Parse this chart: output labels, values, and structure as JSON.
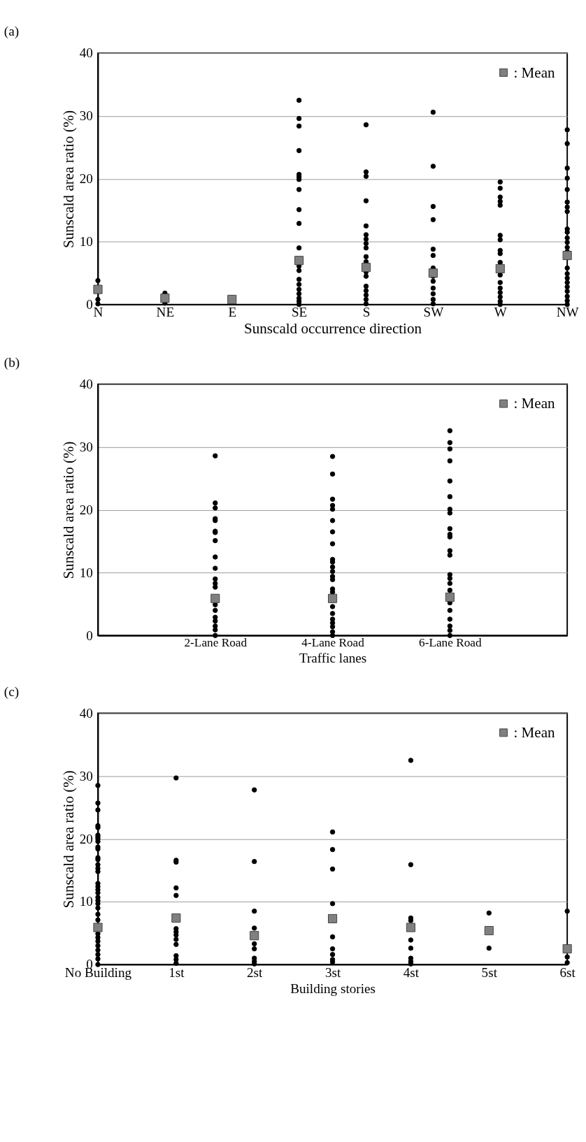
{
  "chart_data": [
    {
      "type": "scatter",
      "title": "(a)",
      "xlabel": "Sunscald occurrence direction",
      "ylabel": "Sunscald area ratio (%)",
      "categories": [
        "N",
        "NE",
        "E",
        "SE",
        "S",
        "SW",
        "W",
        "NW"
      ],
      "ylim": [
        0,
        40
      ],
      "yticks": [
        0,
        10,
        20,
        30,
        40
      ],
      "grid": "y",
      "legend": "top right",
      "series": [
        {
          "color": "#000000",
          "marker": "circle",
          "x": [
            "N",
            "N",
            "N",
            "NE",
            "NE",
            "E",
            "SE",
            "SE",
            "SE",
            "SE",
            "SE",
            "SE",
            "SE",
            "SE",
            "SE",
            "SE",
            "SE",
            "SE",
            "SE",
            "SE",
            "SE",
            "SE",
            "SE",
            "SE",
            "SE",
            "SE",
            "S",
            "S",
            "S",
            "S",
            "S",
            "S",
            "S",
            "S",
            "S",
            "S",
            "S",
            "S",
            "S",
            "S",
            "S",
            "S",
            "S",
            "S",
            "SW",
            "SW",
            "SW",
            "SW",
            "SW",
            "SW",
            "SW",
            "SW",
            "SW",
            "SW",
            "SW",
            "SW",
            "SW",
            "W",
            "W",
            "W",
            "W",
            "W",
            "W",
            "W",
            "W",
            "W",
            "W",
            "W",
            "W",
            "W",
            "W",
            "W",
            "W",
            "W",
            "NW",
            "NW",
            "NW",
            "NW",
            "NW",
            "NW",
            "NW",
            "NW",
            "NW",
            "NW",
            "NW",
            "NW",
            "NW",
            "NW",
            "NW",
            "NW",
            "NW",
            "NW",
            "NW",
            "NW",
            "NW",
            "NW",
            "NW"
          ],
          "values": [
            3.8,
            0.8,
            0.1,
            1.8,
            0.2,
            1.1,
            32.5,
            29.6,
            28.4,
            24.5,
            20.7,
            20.3,
            19.9,
            18.3,
            15.1,
            12.9,
            9.0,
            6.1,
            5.4,
            4.0,
            3.2,
            2.4,
            1.7,
            1.0,
            0.5,
            0.0,
            28.6,
            21.1,
            20.4,
            16.5,
            12.5,
            11.1,
            10.4,
            9.7,
            9.0,
            7.6,
            6.8,
            5.2,
            4.5,
            2.9,
            2.2,
            1.5,
            0.8,
            0.1,
            30.6,
            22.0,
            15.6,
            13.5,
            8.8,
            7.8,
            5.8,
            4.5,
            3.7,
            2.6,
            1.7,
            0.8,
            0.1,
            19.5,
            18.5,
            17.1,
            16.4,
            15.8,
            11.0,
            10.3,
            8.6,
            8.1,
            6.7,
            4.7,
            3.5,
            2.6,
            1.9,
            1.2,
            0.5,
            0.0,
            27.8,
            25.6,
            21.7,
            20.1,
            18.3,
            16.3,
            15.5,
            14.8,
            12.0,
            11.5,
            10.6,
            9.9,
            9.1,
            8.4,
            5.8,
            4.9,
            4.2,
            3.5,
            2.8,
            2.1,
            1.3,
            0.6,
            0.0
          ]
        },
        {
          "name": ": Mean",
          "color": "#808080",
          "marker": "square",
          "x": [
            "N",
            "NE",
            "E",
            "SE",
            "S",
            "SW",
            "W",
            "NW"
          ],
          "values": [
            2.4,
            1.0,
            0.8,
            7.0,
            5.9,
            5.0,
            5.7,
            7.8
          ]
        }
      ]
    },
    {
      "type": "scatter",
      "title": "(b)",
      "xlabel": "Traffic lanes",
      "ylabel": "Sunscald area ratio (%)",
      "categories": [
        "2-Lane Road",
        "4-Lane Road",
        "6-Lane Road"
      ],
      "ylim": [
        0,
        40
      ],
      "yticks": [
        0,
        10,
        20,
        30,
        40
      ],
      "grid": "y",
      "legend": "top right",
      "series": [
        {
          "color": "#000000",
          "marker": "circle",
          "x": [
            "2-Lane Road",
            "2-Lane Road",
            "2-Lane Road",
            "2-Lane Road",
            "2-Lane Road",
            "2-Lane Road",
            "2-Lane Road",
            "2-Lane Road",
            "2-Lane Road",
            "2-Lane Road",
            "2-Lane Road",
            "2-Lane Road",
            "2-Lane Road",
            "2-Lane Road",
            "2-Lane Road",
            "2-Lane Road",
            "2-Lane Road",
            "2-Lane Road",
            "2-Lane Road",
            "2-Lane Road",
            "4-Lane Road",
            "4-Lane Road",
            "4-Lane Road",
            "4-Lane Road",
            "4-Lane Road",
            "4-Lane Road",
            "4-Lane Road",
            "4-Lane Road",
            "4-Lane Road",
            "4-Lane Road",
            "4-Lane Road",
            "4-Lane Road",
            "4-Lane Road",
            "4-Lane Road",
            "4-Lane Road",
            "4-Lane Road",
            "4-Lane Road",
            "4-Lane Road",
            "4-Lane Road",
            "4-Lane Road",
            "4-Lane Road",
            "4-Lane Road",
            "4-Lane Road",
            "6-Lane Road",
            "6-Lane Road",
            "6-Lane Road",
            "6-Lane Road",
            "6-Lane Road",
            "6-Lane Road",
            "6-Lane Road",
            "6-Lane Road",
            "6-Lane Road",
            "6-Lane Road",
            "6-Lane Road",
            "6-Lane Road",
            "6-Lane Road",
            "6-Lane Road",
            "6-Lane Road",
            "6-Lane Road",
            "6-Lane Road",
            "6-Lane Road",
            "6-Lane Road",
            "6-Lane Road",
            "6-Lane Road",
            "6-Lane Road",
            "6-Lane Road"
          ],
          "values": [
            28.6,
            21.1,
            20.3,
            18.6,
            18.3,
            16.6,
            16.4,
            15.1,
            12.5,
            10.7,
            9.0,
            8.3,
            7.7,
            4.9,
            4.0,
            2.9,
            2.3,
            1.5,
            0.9,
            0.0,
            28.5,
            25.7,
            21.7,
            20.7,
            20.1,
            18.3,
            16.5,
            14.6,
            12.1,
            11.7,
            10.9,
            10.2,
            9.4,
            8.9,
            7.4,
            6.9,
            4.6,
            3.5,
            2.6,
            2.0,
            1.4,
            0.6,
            0.0,
            32.6,
            30.7,
            29.7,
            27.8,
            24.6,
            22.1,
            20.1,
            19.5,
            17.0,
            16.1,
            15.7,
            13.5,
            12.8,
            9.7,
            9.1,
            8.3,
            7.2,
            5.2,
            4.0,
            2.6,
            1.5,
            0.8,
            0.0
          ]
        },
        {
          "name": ": Mean",
          "color": "#808080",
          "marker": "square",
          "x": [
            "2-Lane Road",
            "4-Lane Road",
            "6-Lane Road"
          ],
          "values": [
            5.9,
            5.9,
            6.1
          ]
        }
      ]
    },
    {
      "type": "scatter",
      "title": "(c)",
      "xlabel": "Building stories",
      "ylabel": "Sunscald area ratio (%)",
      "categories": [
        "No Building",
        "1st",
        "2st",
        "3st",
        "4st",
        "5st",
        "6st"
      ],
      "ylim": [
        0,
        40
      ],
      "yticks": [
        0,
        10,
        20,
        30,
        40
      ],
      "grid": "y",
      "legend": "top right",
      "series": [
        {
          "color": "#000000",
          "marker": "circle",
          "x": [
            "No Building",
            "No Building",
            "No Building",
            "No Building",
            "No Building",
            "No Building",
            "No Building",
            "No Building",
            "No Building",
            "No Building",
            "No Building",
            "No Building",
            "No Building",
            "No Building",
            "No Building",
            "No Building",
            "No Building",
            "No Building",
            "No Building",
            "No Building",
            "No Building",
            "No Building",
            "No Building",
            "No Building",
            "No Building",
            "No Building",
            "No Building",
            "No Building",
            "No Building",
            "No Building",
            "No Building",
            "No Building",
            "No Building",
            "No Building",
            "1st",
            "1st",
            "1st",
            "1st",
            "1st",
            "1st",
            "1st",
            "1st",
            "1st",
            "1st",
            "1st",
            "1st",
            "1st",
            "2st",
            "2st",
            "2st",
            "2st",
            "2st",
            "2st",
            "2st",
            "2st",
            "2st",
            "3st",
            "3st",
            "3st",
            "3st",
            "3st",
            "3st",
            "3st",
            "3st",
            "3st",
            "4st",
            "4st",
            "4st",
            "4st",
            "4st",
            "4st",
            "4st",
            "4st",
            "4st",
            "5st",
            "5st",
            "6st",
            "6st",
            "6st"
          ],
          "values": [
            28.5,
            25.7,
            24.6,
            22.1,
            21.8,
            20.6,
            20.3,
            20.0,
            19.6,
            18.7,
            18.4,
            17.0,
            16.7,
            15.9,
            15.3,
            14.8,
            12.9,
            12.4,
            11.9,
            11.4,
            10.7,
            10.2,
            9.7,
            9.0,
            8.0,
            7.1,
            4.9,
            4.3,
            3.7,
            3.0,
            2.3,
            1.6,
            0.9,
            0.0,
            29.7,
            16.6,
            16.3,
            12.2,
            11.0,
            5.7,
            5.2,
            4.7,
            4.0,
            3.2,
            1.4,
            0.8,
            0.2,
            27.8,
            16.4,
            8.5,
            5.8,
            3.3,
            2.5,
            1.0,
            0.5,
            0.1,
            21.1,
            18.3,
            15.2,
            9.7,
            4.4,
            2.5,
            1.6,
            0.8,
            0.4,
            32.5,
            15.9,
            7.4,
            7.0,
            3.9,
            2.6,
            1.0,
            0.5,
            0.1,
            8.2,
            2.6,
            8.5,
            1.2,
            0.3
          ]
        },
        {
          "name": ": Mean",
          "color": "#808080",
          "marker": "square",
          "x": [
            "No Building",
            "1st",
            "2st",
            "3st",
            "4st",
            "5st",
            "6st"
          ],
          "values": [
            5.9,
            7.4,
            4.6,
            7.3,
            5.9,
            5.4,
            2.5
          ]
        }
      ]
    }
  ]
}
